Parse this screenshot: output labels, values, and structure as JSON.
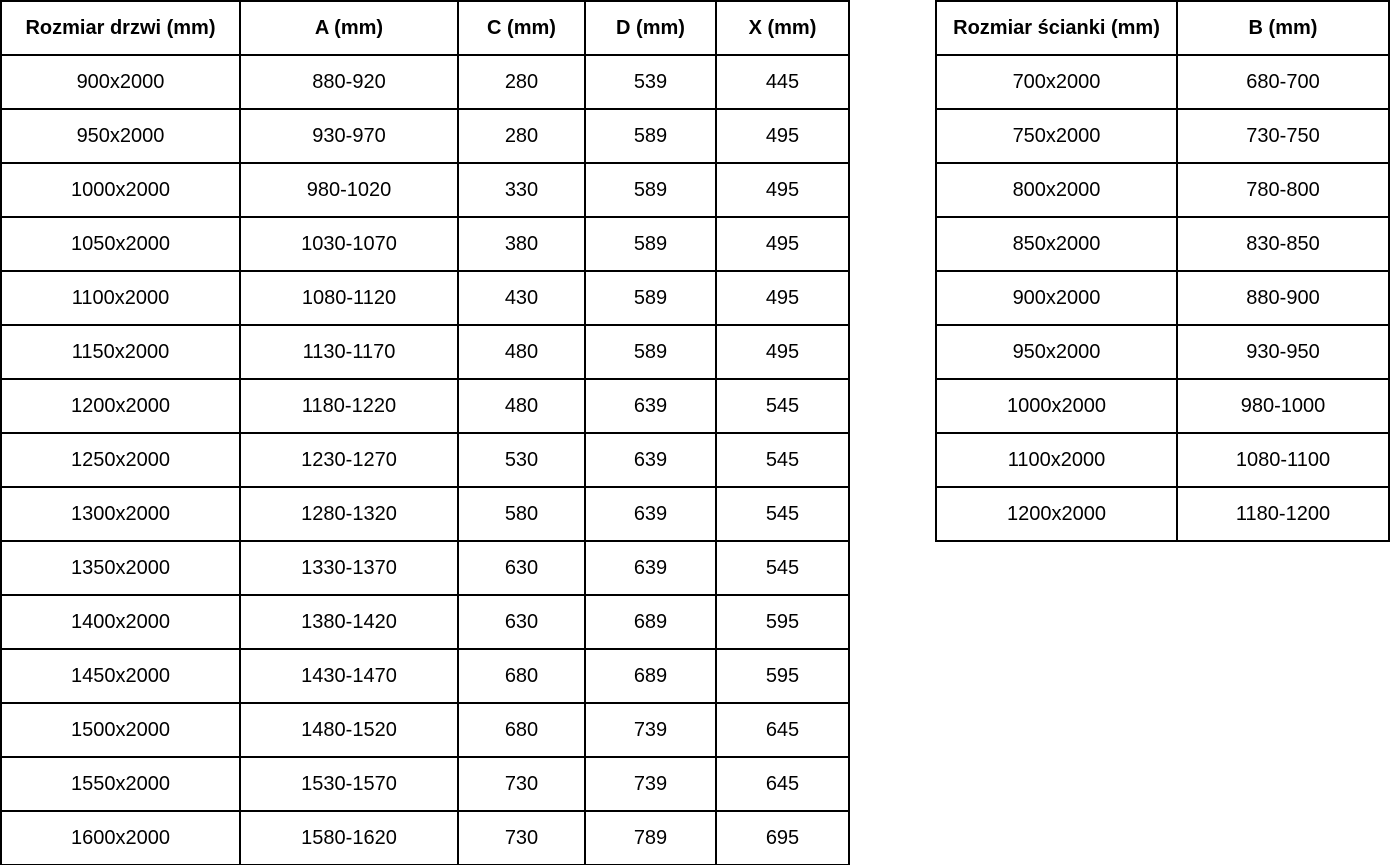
{
  "page": {
    "background_color": "#ffffff",
    "border_color": "#000000",
    "text_color": "#000000"
  },
  "door_table": {
    "headers": [
      "Rozmiar drzwi (mm)",
      "A (mm)",
      "C (mm)",
      "D (mm)",
      "X (mm)"
    ],
    "rows": [
      [
        "900x2000",
        "880-920",
        "280",
        "539",
        "445"
      ],
      [
        "950x2000",
        "930-970",
        "280",
        "589",
        "495"
      ],
      [
        "1000x2000",
        "980-1020",
        "330",
        "589",
        "495"
      ],
      [
        "1050x2000",
        "1030-1070",
        "380",
        "589",
        "495"
      ],
      [
        "1100x2000",
        "1080-1120",
        "430",
        "589",
        "495"
      ],
      [
        "1150x2000",
        "1130-1170",
        "480",
        "589",
        "495"
      ],
      [
        "1200x2000",
        "1180-1220",
        "480",
        "639",
        "545"
      ],
      [
        "1250x2000",
        "1230-1270",
        "530",
        "639",
        "545"
      ],
      [
        "1300x2000",
        "1280-1320",
        "580",
        "639",
        "545"
      ],
      [
        "1350x2000",
        "1330-1370",
        "630",
        "639",
        "545"
      ],
      [
        "1400x2000",
        "1380-1420",
        "630",
        "689",
        "595"
      ],
      [
        "1450x2000",
        "1430-1470",
        "680",
        "689",
        "595"
      ],
      [
        "1500x2000",
        "1480-1520",
        "680",
        "739",
        "645"
      ],
      [
        "1550x2000",
        "1530-1570",
        "730",
        "739",
        "645"
      ],
      [
        "1600x2000",
        "1580-1620",
        "730",
        "789",
        "695"
      ]
    ]
  },
  "wall_table": {
    "headers": [
      "Rozmiar ścianki (mm)",
      "B (mm)"
    ],
    "rows": [
      [
        "700x2000",
        "680-700"
      ],
      [
        "750x2000",
        "730-750"
      ],
      [
        "800x2000",
        "780-800"
      ],
      [
        "850x2000",
        "830-850"
      ],
      [
        "900x2000",
        "880-900"
      ],
      [
        "950x2000",
        "930-950"
      ],
      [
        "1000x2000",
        "980-1000"
      ],
      [
        "1100x2000",
        "1080-1100"
      ],
      [
        "1200x2000",
        "1180-1200"
      ]
    ]
  }
}
